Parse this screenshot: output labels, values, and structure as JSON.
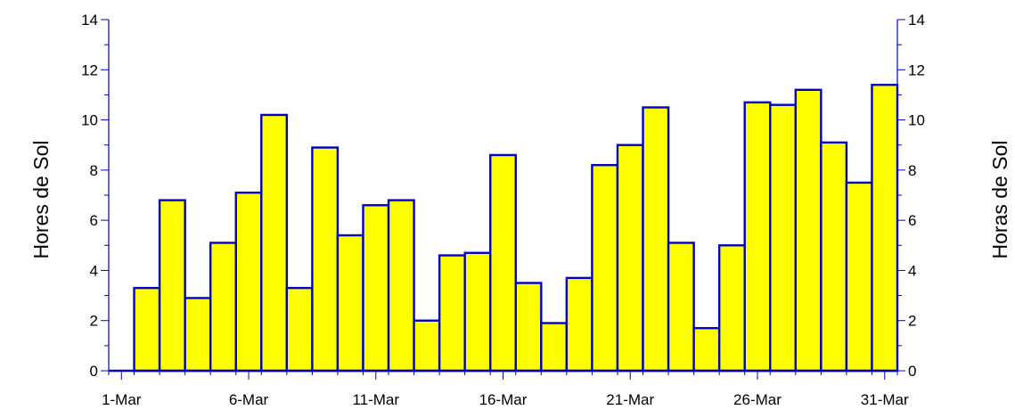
{
  "chart_data": {
    "type": "bar",
    "title": "",
    "xlabel": "",
    "ylabel_left": "Hores de Sol",
    "ylabel_right": "Horas de Sol",
    "ylim": [
      0,
      14
    ],
    "y_ticks": [
      0,
      2,
      4,
      6,
      8,
      10,
      12,
      14
    ],
    "x_tick_labels": [
      "1-Mar",
      "6-Mar",
      "11-Mar",
      "16-Mar",
      "21-Mar",
      "26-Mar",
      "31-Mar"
    ],
    "x_tick_days": [
      1,
      6,
      11,
      16,
      21,
      26,
      31
    ],
    "grid": false,
    "legend": "none",
    "bar_fill": "#ffff00",
    "bar_stroke": "#0000cc",
    "axis_color": "#0000cc",
    "days": [
      1,
      2,
      3,
      4,
      5,
      6,
      7,
      8,
      9,
      10,
      11,
      12,
      13,
      14,
      15,
      16,
      17,
      18,
      19,
      20,
      21,
      22,
      23,
      24,
      25,
      26,
      27,
      28,
      29,
      30,
      31
    ],
    "values": [
      0,
      3.3,
      6.8,
      2.9,
      5.1,
      7.1,
      10.2,
      3.3,
      8.9,
      5.4,
      6.6,
      6.8,
      2.0,
      4.6,
      4.7,
      8.6,
      3.5,
      1.9,
      3.7,
      8.2,
      9.0,
      10.5,
      5.1,
      1.7,
      5.0,
      10.7,
      10.6,
      11.2,
      9.1,
      7.5,
      11.4
    ]
  }
}
